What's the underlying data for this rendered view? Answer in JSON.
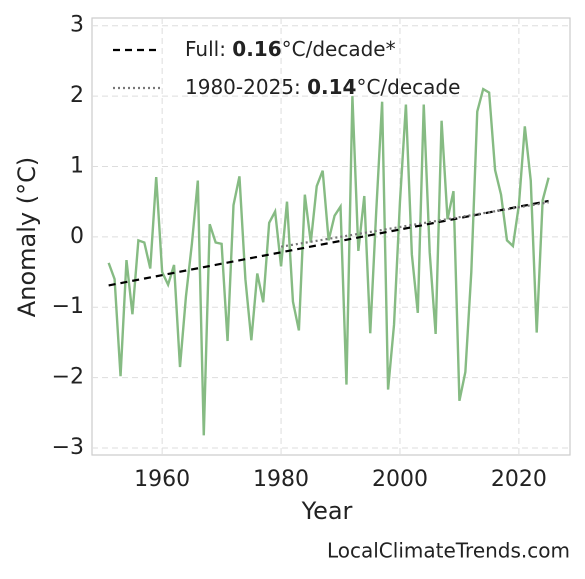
{
  "chart_data": {
    "type": "line",
    "x": [
      1951,
      1952,
      1953,
      1954,
      1955,
      1956,
      1957,
      1958,
      1959,
      1960,
      1961,
      1962,
      1963,
      1964,
      1965,
      1966,
      1967,
      1968,
      1969,
      1970,
      1971,
      1972,
      1973,
      1974,
      1975,
      1976,
      1977,
      1978,
      1979,
      1980,
      1981,
      1982,
      1983,
      1984,
      1985,
      1986,
      1987,
      1988,
      1989,
      1990,
      1991,
      1992,
      1993,
      1994,
      1995,
      1996,
      1997,
      1998,
      1999,
      2000,
      2001,
      2002,
      2003,
      2004,
      2005,
      2006,
      2007,
      2008,
      2009,
      2010,
      2011,
      2012,
      2013,
      2014,
      2015,
      2016,
      2017,
      2018,
      2019,
      2020,
      2021,
      2022,
      2023,
      2024,
      2025
    ],
    "series": [
      {
        "color": "#86bb83",
        "values": [
          -0.37,
          -0.6,
          -1.98,
          -0.33,
          -1.1,
          -0.05,
          -0.08,
          -0.45,
          0.85,
          -0.5,
          -0.68,
          -0.4,
          -1.85,
          -0.85,
          -0.1,
          0.8,
          -2.82,
          0.18,
          -0.08,
          -0.1,
          -1.48,
          0.45,
          0.86,
          -0.6,
          -1.47,
          -0.52,
          -0.93,
          0.2,
          0.36,
          -0.42,
          0.5,
          -0.92,
          -1.33,
          0.6,
          -0.08,
          0.72,
          0.94,
          -0.05,
          0.3,
          0.43,
          -2.1,
          2.0,
          -0.2,
          0.58,
          -1.37,
          0.35,
          1.92,
          -2.17,
          -1.25,
          0.5,
          1.88,
          -0.25,
          -1.08,
          1.88,
          -0.22,
          -1.38,
          1.65,
          0.25,
          0.65,
          -2.33,
          -1.92,
          -0.5,
          1.78,
          2.1,
          2.05,
          0.95,
          0.6,
          -0.05,
          -0.13,
          0.45,
          1.57,
          0.8,
          -1.36,
          0.52,
          0.84
        ]
      }
    ],
    "trends": [
      {
        "label_parts": [
          "Full: ",
          "0.16",
          "°C/decade*"
        ],
        "color": "#000000",
        "dash": "7,5",
        "x": [
          1951,
          2025
        ],
        "values": [
          -0.69,
          0.51
        ]
      },
      {
        "label_parts": [
          "1980-2025: ",
          "0.14",
          "°C/decade"
        ],
        "color": "#777777",
        "dash": "2,3",
        "x": [
          1980,
          2025
        ],
        "values": [
          -0.14,
          0.49
        ]
      }
    ],
    "xlabel": "Year",
    "ylabel": "Anomaly (°C)",
    "xlim": [
      1948.2,
      2028.6
    ],
    "ylim": [
      -3.1,
      3.11
    ],
    "xticks": [
      1960,
      1980,
      2000,
      2020
    ],
    "yticks": [
      {
        "value": -3,
        "label": "−3"
      },
      {
        "value": -2,
        "label": "−2"
      },
      {
        "value": -1,
        "label": "−1"
      },
      0,
      1,
      2,
      3
    ],
    "grid": true,
    "legend": "upper left",
    "watermark": "LocalClimateTrends.com"
  }
}
